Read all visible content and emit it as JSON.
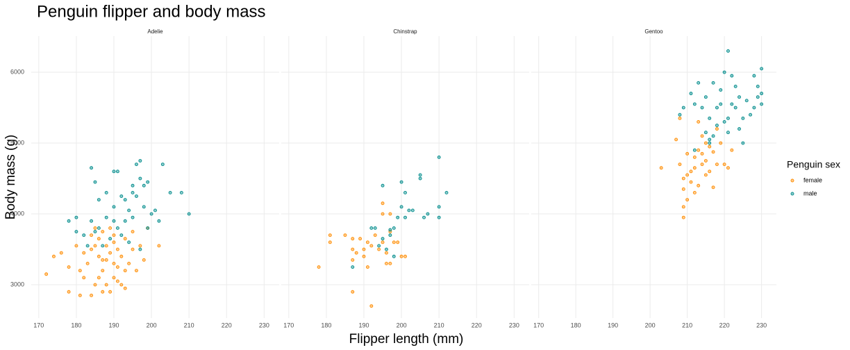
{
  "figure": {
    "title": "Penguin flipper and body mass",
    "x_label": "Flipper length (mm)",
    "y_label": "Body mass (g)",
    "legend_title": "Penguin sex"
  },
  "chart_data": [
    {
      "type": "scatter",
      "title": "Adelie",
      "xlim": [
        168,
        234
      ],
      "ylim": [
        2530,
        6510
      ],
      "xticks": [
        170,
        180,
        190,
        200,
        210,
        220,
        230
      ],
      "yticks": [
        3000,
        4000,
        5000,
        6000
      ],
      "grid": true,
      "series": [
        {
          "name": "female",
          "color": "#ff8c00",
          "x": [
            172,
            174,
            176,
            178,
            178,
            180,
            181,
            181,
            182,
            182,
            183,
            184,
            184,
            185,
            185,
            185,
            186,
            186,
            186,
            187,
            187,
            187,
            188,
            188,
            188,
            189,
            189,
            189,
            190,
            190,
            190,
            190,
            191,
            191,
            192,
            192,
            193,
            193,
            194,
            195,
            196,
            197,
            198,
            199,
            202,
            184,
            187,
            191,
            195,
            193
          ],
          "values": [
            3150,
            3400,
            3450,
            3250,
            2900,
            3550,
            2850,
            3200,
            3100,
            3450,
            3300,
            2850,
            3700,
            3000,
            3550,
            3800,
            3100,
            3400,
            3650,
            3200,
            2900,
            3750,
            3000,
            3350,
            3550,
            2900,
            3450,
            3800,
            3100,
            3300,
            3600,
            3700,
            3250,
            3500,
            3000,
            3400,
            2950,
            3650,
            3300,
            3500,
            3200,
            3550,
            3350,
            3800,
            3550,
            3500,
            3350,
            3050,
            3750,
            3200
          ]
        },
        {
          "name": "male",
          "color": "#008b8b",
          "x": [
            178,
            180,
            180,
            182,
            183,
            184,
            184,
            185,
            185,
            186,
            187,
            188,
            188,
            189,
            190,
            190,
            190,
            191,
            191,
            192,
            193,
            193,
            194,
            195,
            195,
            195,
            196,
            196,
            197,
            197,
            197,
            198,
            199,
            199,
            200,
            201,
            202,
            203,
            205,
            208,
            210,
            186,
            192,
            194,
            198
          ],
          "values": [
            3900,
            3950,
            3750,
            3700,
            3550,
            4650,
            3900,
            4450,
            3750,
            3800,
            3550,
            4300,
            3950,
            3650,
            4600,
            3900,
            4100,
            4600,
            3800,
            4250,
            4200,
            3900,
            4050,
            4300,
            4400,
            3950,
            4700,
            4250,
            4750,
            4500,
            3500,
            4400,
            4450,
            3800,
            4000,
            4050,
            3900,
            4700,
            4300,
            4300,
            4000,
            4200,
            3700,
            3600,
            4100
          ]
        }
      ]
    },
    {
      "type": "scatter",
      "title": "Chinstrap",
      "xlim": [
        168,
        234
      ],
      "ylim": [
        2530,
        6510
      ],
      "xticks": [
        170,
        180,
        190,
        200,
        210,
        220,
        230
      ],
      "yticks": [
        3000,
        4000,
        5000,
        6000
      ],
      "grid": true,
      "series": [
        {
          "name": "female",
          "color": "#ff8c00",
          "x": [
            178,
            181,
            181,
            185,
            187,
            187,
            187,
            188,
            189,
            190,
            190,
            191,
            191,
            192,
            192,
            193,
            194,
            195,
            195,
            196,
            196,
            197,
            197,
            198,
            199,
            200,
            201,
            195,
            197,
            187
          ],
          "values": [
            3250,
            3700,
            3600,
            3700,
            3650,
            3350,
            2900,
            3450,
            3650,
            3400,
            3500,
            3600,
            3250,
            2700,
            3550,
            3700,
            3500,
            3600,
            4000,
            3300,
            3450,
            3750,
            3300,
            3600,
            3600,
            3400,
            3400,
            4150,
            4000,
            3500
          ]
        },
        {
          "name": "male",
          "color": "#008b8b",
          "x": [
            187,
            192,
            193,
            194,
            195,
            195,
            196,
            197,
            198,
            198,
            199,
            200,
            200,
            201,
            202,
            203,
            205,
            205,
            206,
            207,
            210,
            210,
            210,
            212,
            201,
            197
          ],
          "values": [
            3250,
            3800,
            3800,
            3550,
            4400,
            3650,
            3500,
            3700,
            3400,
            3800,
            3950,
            4100,
            4450,
            3950,
            4050,
            4050,
            4550,
            4500,
            3950,
            4000,
            4800,
            4100,
            3950,
            4300,
            4300,
            3775
          ]
        }
      ]
    },
    {
      "type": "scatter",
      "title": "Gentoo",
      "xlim": [
        168,
        234
      ],
      "ylim": [
        2530,
        6510
      ],
      "xticks": [
        170,
        180,
        190,
        200,
        210,
        220,
        230
      ],
      "yticks": [
        3000,
        4000,
        5000,
        6000
      ],
      "grid": true,
      "series": [
        {
          "name": "female",
          "color": "#ff8c00",
          "x": [
            203,
            207,
            208,
            209,
            209,
            209,
            210,
            210,
            210,
            211,
            211,
            212,
            212,
            212,
            213,
            213,
            214,
            214,
            215,
            215,
            215,
            216,
            216,
            217,
            217,
            218,
            218,
            219,
            220,
            221,
            222,
            213,
            214,
            209,
            208
          ],
          "values": [
            4650,
            5050,
            4700,
            4350,
            3950,
            4500,
            4550,
            4200,
            4850,
            4450,
            4600,
            4800,
            4650,
            4300,
            4900,
            4400,
            4700,
            4850,
            5000,
            4750,
            4550,
            4950,
            4600,
            4375,
            4875,
            5200,
            4700,
            5000,
            4700,
            4650,
            4900,
            5300,
            5100,
            4100,
            5350
          ]
        },
        {
          "name": "male",
          "color": "#008b8b",
          "x": [
            208,
            209,
            211,
            212,
            213,
            214,
            215,
            215,
            216,
            216,
            217,
            218,
            218,
            219,
            219,
            220,
            220,
            221,
            221,
            222,
            222,
            223,
            223,
            224,
            225,
            225,
            226,
            227,
            228,
            228,
            229,
            230,
            230,
            230,
            216,
            221,
            224,
            229,
            212,
            217
          ],
          "values": [
            5400,
            5500,
            5700,
            5550,
            5850,
            5500,
            5650,
            5150,
            5350,
            5050,
            5850,
            5500,
            5250,
            5550,
            5750,
            6000,
            5300,
            6300,
            5150,
            5550,
            5950,
            5800,
            5500,
            5650,
            5000,
            5350,
            5600,
            5400,
            5950,
            5500,
            5800,
            6050,
            5700,
            5550,
            5000,
            5350,
            5200,
            5650,
            4900,
            5100
          ]
        }
      ]
    }
  ]
}
